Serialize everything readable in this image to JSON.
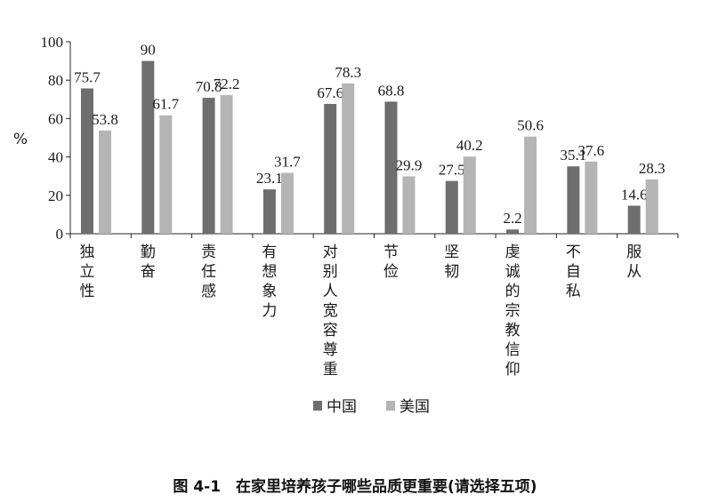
{
  "chart_data": {
    "type": "bar",
    "ylabel": "%",
    "ylim": [
      0,
      100
    ],
    "yticks": [
      0,
      20,
      40,
      60,
      80,
      100
    ],
    "grid": false,
    "legend_position": "bottom-center",
    "categories": [
      "独立性",
      "勤奋",
      "责任感",
      "有想象力",
      "对别人宽容尊重",
      "节俭",
      "坚韧",
      "虔诚的宗教信仰",
      "不自私",
      "服从"
    ],
    "series": [
      {
        "name": "中国",
        "color": "#6e6e6e",
        "values": [
          75.7,
          90,
          70.8,
          23.1,
          67.6,
          68.8,
          27.5,
          2.2,
          35.1,
          14.6
        ],
        "labels": [
          "75.7",
          "90",
          "70.8",
          "23.1",
          "67.6",
          "68.8",
          "27.5",
          "2.2",
          "35.1",
          "14.6"
        ]
      },
      {
        "name": "美国",
        "color": "#b4b4b4",
        "values": [
          53.8,
          61.7,
          72.2,
          31.7,
          78.3,
          29.9,
          40.2,
          50.6,
          37.6,
          28.3
        ],
        "labels": [
          "53.8",
          "61.7",
          "72.2",
          "31.7",
          "78.3",
          "29.9",
          "40.2",
          "50.6",
          "37.6",
          "28.3"
        ]
      }
    ]
  },
  "caption": "图 4-1　在家里培养孩子哪些品质更重要(请选择五项)"
}
